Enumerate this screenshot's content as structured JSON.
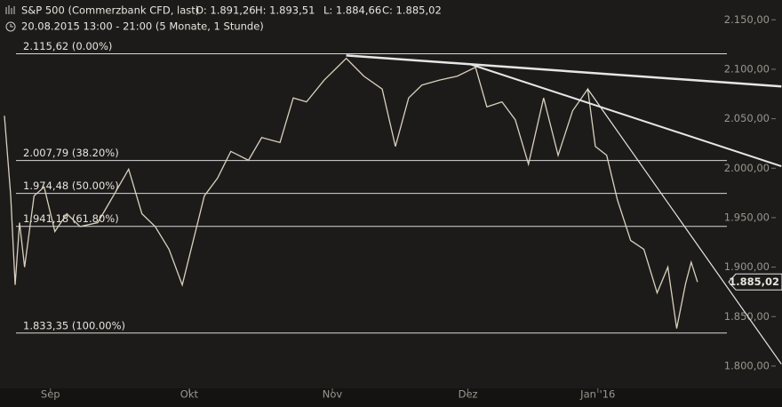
{
  "chart_data": {
    "type": "line",
    "title": "S&P 500 (Commerzbank CFD, last)",
    "ohlc": [
      {
        "label": "O: 1.891,26",
        "value": 1891.26
      },
      {
        "label": "H: 1.893,51",
        "value": 1893.51
      },
      {
        "label": "L: 1.884,66",
        "value": 1884.66
      },
      {
        "label": "C: 1.885,02",
        "value": 1885.02
      }
    ],
    "subtitle": "20.08.2015 13:00 - 21:00 (5 Monate, 1 Stunde)",
    "x": [
      0.7,
      1.7,
      2.4,
      3.1,
      3.9,
      5.4,
      7.0,
      8.7,
      10.6,
      12.7,
      15.5,
      17.6,
      20.4,
      22.5,
      24.6,
      26.8,
      28.9,
      30.3,
      32.4,
      34.5,
      36.6,
      39.4,
      41.5,
      44.4,
      46.5,
      48.6,
      51.4,
      54.9,
      57.7,
      60.6,
      62.7,
      64.8,
      66.9,
      69.7,
      72.5,
      75.4,
      77.2,
      79.6,
      81.7,
      83.8,
      86.2,
      88.5,
      90.8,
      93.2,
      94.4,
      96.2,
      97.9,
      100.0,
      102.1,
      104.2,
      105.9,
      107.3,
      108.7,
      109.6,
      110.6
    ],
    "series": [
      {
        "name": "S&P 500",
        "color": "#d9d0bd",
        "values": [
          2053,
          1972,
          1882,
          1945,
          1900,
          1972,
          1981,
          1936,
          1954,
          1941,
          1945,
          1968,
          1999,
          1954,
          1941,
          1918,
          1882,
          1918,
          1972,
          1990,
          2017,
          2008,
          2031,
          2026,
          2071,
          2067,
          2089,
          2111,
          2093,
          2080,
          2022,
          2071,
          2084,
          2089,
          2093,
          2102,
          2062,
          2067,
          2049,
          2004,
          2071,
          2013,
          2058,
          2080,
          2022,
          2013,
          1968,
          1927,
          1918,
          1874,
          1900,
          1838,
          1883,
          1905,
          1885
        ]
      }
    ],
    "xlim": [
      0,
      124
    ],
    "ylim": [
      1764,
      2170
    ],
    "xticks": [
      {
        "value": 8,
        "label": "Sep"
      },
      {
        "value": 30,
        "label": "Okt"
      },
      {
        "value": 52.7,
        "label": "Nov"
      },
      {
        "value": 74.2,
        "label": "Dez"
      },
      {
        "value": 94.8,
        "label": "Jan '16"
      }
    ],
    "yticks": [
      {
        "value": 2150,
        "label": "2.150,00"
      },
      {
        "value": 2100,
        "label": "2.100,00"
      },
      {
        "value": 2050,
        "label": "2.050,00"
      },
      {
        "value": 2000,
        "label": "2.000,00"
      },
      {
        "value": 1950,
        "label": "1.950,00"
      },
      {
        "value": 1900,
        "label": "1.900,00"
      },
      {
        "value": 1850,
        "label": "1.850,00"
      },
      {
        "value": 1800,
        "label": "1.800,00"
      }
    ],
    "fib_levels": [
      {
        "value": 2115.62,
        "label": "2.115,62 (0.00%)"
      },
      {
        "value": 2007.79,
        "label": "2.007,79 (38.20%)"
      },
      {
        "value": 1974.48,
        "label": "1.974,48 (50.00%)"
      },
      {
        "value": 1941.18,
        "label": "1.941,18 (61.80%)"
      },
      {
        "value": 1833.35,
        "label": "1.833,35 (100.00%)"
      }
    ],
    "trendlines": [
      {
        "x": [
          54.9,
          123.9
        ],
        "y": [
          2114,
          2082.6
        ]
      },
      {
        "x": [
          74.6,
          123.9
        ],
        "y": [
          2105,
          2002
        ]
      },
      {
        "x": [
          93.2,
          123.9
        ],
        "y": [
          2080,
          1802
        ]
      }
    ],
    "last_price": {
      "value": 1885.02,
      "label": "1.885,02"
    }
  }
}
